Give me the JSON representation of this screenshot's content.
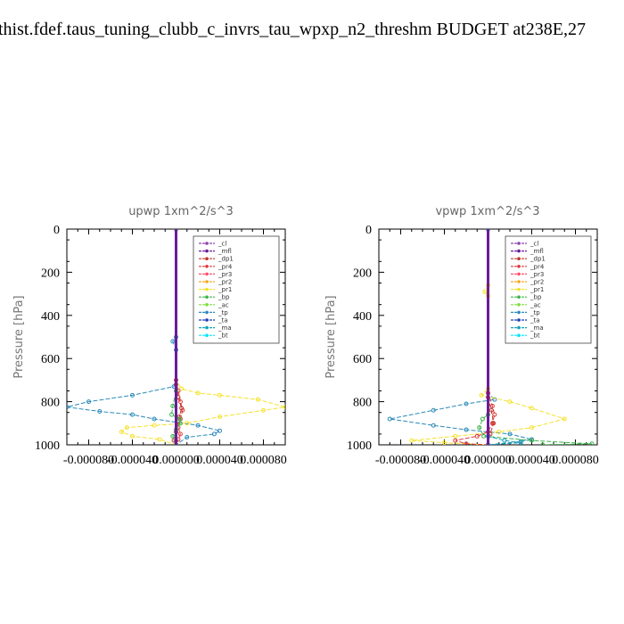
{
  "page_title": "thist.fdef.taus_tuning_clubb_c_invrs_tau_wpxp_n2_threshm  BUDGET at238E,27",
  "colors": {
    "_cl": "#8e44ad",
    "_mfl": "#6a1b9a",
    "_dp1": "#c0392b",
    "_pr4": "#e0393e",
    "_pr3": "#ff4f6a",
    "_pr2": "#f5a623",
    "_pr1": "#f5e12b",
    "_bp": "#3cb44b",
    "_ac": "#7ddf3a",
    "_tp": "#2a8ab8",
    "_ta": "#1f3fb4",
    "_ma": "#17a2b8",
    "_bt": "#00e5ff"
  },
  "chart_data": [
    {
      "type": "line",
      "title": "upwp   1xm^2/s^3",
      "ylabel": "Pressure [hPa]",
      "xlim": [
        -0.0001,
        0.0001
      ],
      "ylim": [
        1000,
        0
      ],
      "x_ticks": [
        "-0.000080",
        "-0.000040",
        "0.000000",
        "0.000040",
        "0.000080"
      ],
      "x_tick_values": [
        -8e-05,
        -4e-05,
        0,
        4e-05,
        8e-05
      ],
      "y_ticks": [
        "0",
        "200",
        "400",
        "600",
        "800",
        "1000"
      ],
      "y_tick_values": [
        0,
        200,
        400,
        600,
        800,
        1000
      ],
      "legend": [
        "_cl",
        "_mfl",
        "_dp1",
        "_pr4",
        "_pr3",
        "_pr2",
        "_pr1",
        "_bp",
        "_ac",
        "_tp",
        "_ta",
        "_ma",
        "_bt"
      ],
      "legend_position": "top-right",
      "series": [
        {
          "name": "_tp",
          "points": [
            [
              0,
              0
            ],
            [
              0,
              500
            ],
            [
              -3e-06,
              520
            ],
            [
              0,
              560
            ],
            [
              0,
              700
            ],
            [
              -2e-06,
              730
            ],
            [
              -4e-05,
              770
            ],
            [
              -8e-05,
              800
            ],
            [
              -0.0001,
              825
            ],
            [
              -7e-05,
              845
            ],
            [
              -4e-05,
              860
            ],
            [
              -2e-05,
              880
            ],
            [
              2e-05,
              910
            ],
            [
              4e-05,
              935
            ],
            [
              3.5e-05,
              950
            ],
            [
              1e-05,
              965
            ],
            [
              0,
              1000
            ]
          ]
        },
        {
          "name": "_pr1",
          "points": [
            [
              0,
              0
            ],
            [
              0,
              700
            ],
            [
              5e-06,
              740
            ],
            [
              2e-05,
              760
            ],
            [
              4e-05,
              770
            ],
            [
              7.5e-05,
              790
            ],
            [
              0.0001,
              825
            ],
            [
              8e-05,
              840
            ],
            [
              4e-05,
              870
            ],
            [
              1e-05,
              900
            ],
            [
              -2e-05,
              910
            ],
            [
              -4.5e-05,
              920
            ],
            [
              -5e-05,
              940
            ],
            [
              -4e-05,
              960
            ],
            [
              -1.5e-05,
              975
            ],
            [
              0,
              1000
            ]
          ]
        },
        {
          "name": "_pr2",
          "points": [
            [
              0,
              0
            ],
            [
              0,
              1000
            ]
          ]
        },
        {
          "name": "_pr3",
          "points": [
            [
              0,
              0
            ],
            [
              0,
              1000
            ]
          ]
        },
        {
          "name": "_pr4",
          "points": [
            [
              0,
              0
            ],
            [
              0,
              700
            ],
            [
              2e-06,
              750
            ],
            [
              4e-06,
              800
            ],
            [
              6e-06,
              840
            ],
            [
              4e-06,
              880
            ],
            [
              2e-06,
              920
            ],
            [
              4e-06,
              950
            ],
            [
              2e-06,
              975
            ],
            [
              0,
              1000
            ]
          ]
        },
        {
          "name": "_dp1",
          "points": [
            [
              0,
              0
            ],
            [
              0,
              720
            ],
            [
              2e-06,
              780
            ],
            [
              5e-06,
              830
            ],
            [
              3e-06,
              870
            ],
            [
              0,
              940
            ],
            [
              -2e-06,
              980
            ],
            [
              0,
              1000
            ]
          ]
        },
        {
          "name": "_bp",
          "points": [
            [
              0,
              0
            ],
            [
              0,
              750
            ],
            [
              -3e-06,
              820
            ],
            [
              -4e-06,
              860
            ],
            [
              3e-06,
              880
            ],
            [
              4e-06,
              900
            ],
            [
              0,
              930
            ],
            [
              -3e-06,
              960
            ],
            [
              0,
              1000
            ]
          ]
        },
        {
          "name": "_ac",
          "points": [
            [
              0,
              0
            ],
            [
              0,
              1000
            ]
          ]
        },
        {
          "name": "_ta",
          "points": [
            [
              0,
              0
            ],
            [
              0,
              1000
            ]
          ]
        },
        {
          "name": "_ma",
          "points": [
            [
              0,
              0
            ],
            [
              0,
              1000
            ]
          ]
        },
        {
          "name": "_bt",
          "points": [
            [
              0,
              0
            ],
            [
              0,
              1000
            ]
          ]
        },
        {
          "name": "_cl",
          "points": [
            [
              0,
              0
            ],
            [
              0,
              1000
            ]
          ]
        },
        {
          "name": "_mfl",
          "points": [
            [
              0,
              0
            ],
            [
              0,
              1000
            ]
          ]
        }
      ]
    },
    {
      "type": "line",
      "title": "vpwp   1xm^2/s^3",
      "ylabel": "Pressure [hPa]",
      "xlim": [
        -0.0001,
        0.0001
      ],
      "ylim": [
        1000,
        0
      ],
      "x_ticks": [
        "-0.000080",
        "-0.000040",
        "0.000000",
        "0.000040",
        "0.000080"
      ],
      "x_tick_values": [
        -8e-05,
        -4e-05,
        0,
        4e-05,
        8e-05
      ],
      "y_ticks": [
        "0",
        "200",
        "400",
        "600",
        "800",
        "1000"
      ],
      "y_tick_values": [
        0,
        200,
        400,
        600,
        800,
        1000
      ],
      "legend": [
        "_cl",
        "_mfl",
        "_dp1",
        "_pr4",
        "_pr3",
        "_pr2",
        "_pr1",
        "_bp",
        "_ac",
        "_tp",
        "_ta",
        "_ma",
        "_bt"
      ],
      "legend_position": "top-right",
      "series": [
        {
          "name": "_tp",
          "points": [
            [
              0,
              0
            ],
            [
              0,
              760
            ],
            [
              6e-06,
              790
            ],
            [
              -2e-05,
              810
            ],
            [
              -5e-05,
              840
            ],
            [
              -9e-05,
              880
            ],
            [
              -5e-05,
              910
            ],
            [
              -2e-05,
              930
            ],
            [
              2e-05,
              950
            ],
            [
              4e-05,
              975
            ],
            [
              3e-05,
              985
            ],
            [
              0,
              1000
            ]
          ]
        },
        {
          "name": "_pr1",
          "points": [
            [
              0,
              0
            ],
            [
              0,
              260
            ],
            [
              -3e-06,
              290
            ],
            [
              0,
              310
            ],
            [
              0,
              740
            ],
            [
              -6e-06,
              770
            ],
            [
              2e-05,
              800
            ],
            [
              4e-05,
              830
            ],
            [
              7e-05,
              880
            ],
            [
              4e-05,
              920
            ],
            [
              1e-05,
              940
            ],
            [
              -3e-05,
              960
            ],
            [
              -7e-05,
              980
            ],
            [
              -4e-05,
              990
            ],
            [
              0,
              1000
            ]
          ]
        },
        {
          "name": "_pr4",
          "points": [
            [
              0,
              0
            ],
            [
              0,
              760
            ],
            [
              4e-06,
              820
            ],
            [
              6e-06,
              860
            ],
            [
              4e-06,
              900
            ],
            [
              0,
              940
            ],
            [
              -1e-05,
              960
            ],
            [
              -3e-05,
              980
            ],
            [
              -2e-05,
              995
            ],
            [
              0,
              1000
            ]
          ]
        },
        {
          "name": "_dp1",
          "points": [
            [
              0,
              0
            ],
            [
              0,
              780
            ],
            [
              3e-06,
              840
            ],
            [
              5e-06,
              900
            ],
            [
              2e-06,
              950
            ],
            [
              0,
              1000
            ]
          ]
        },
        {
          "name": "_pr3",
          "points": [
            [
              0,
              0
            ],
            [
              0,
              1000
            ]
          ]
        },
        {
          "name": "_pr2",
          "points": [
            [
              0,
              0
            ],
            [
              0,
              1000
            ]
          ]
        },
        {
          "name": "_bp",
          "points": [
            [
              0,
              0
            ],
            [
              0,
              860
            ],
            [
              -5e-06,
              880
            ],
            [
              -8e-06,
              920
            ],
            [
              -4e-06,
              960
            ],
            [
              4e-05,
              980
            ],
            [
              9.5e-05,
              995
            ],
            [
              5e-05,
              1000
            ]
          ]
        },
        {
          "name": "_ac",
          "points": [
            [
              0,
              0
            ],
            [
              0,
              1000
            ]
          ]
        },
        {
          "name": "_ta",
          "points": [
            [
              0,
              0
            ],
            [
              0,
              1000
            ]
          ]
        },
        {
          "name": "_ma",
          "points": [
            [
              0,
              0
            ],
            [
              0,
              960
            ],
            [
              1.5e-05,
              980
            ],
            [
              3e-05,
              990
            ],
            [
              0,
              1000
            ]
          ]
        },
        {
          "name": "_bt",
          "points": [
            [
              0,
              0
            ],
            [
              0,
              1000
            ]
          ]
        },
        {
          "name": "_cl",
          "points": [
            [
              0,
              0
            ],
            [
              0,
              1000
            ]
          ]
        },
        {
          "name": "_mfl",
          "points": [
            [
              0,
              0
            ],
            [
              0,
              1000
            ]
          ]
        }
      ]
    }
  ]
}
